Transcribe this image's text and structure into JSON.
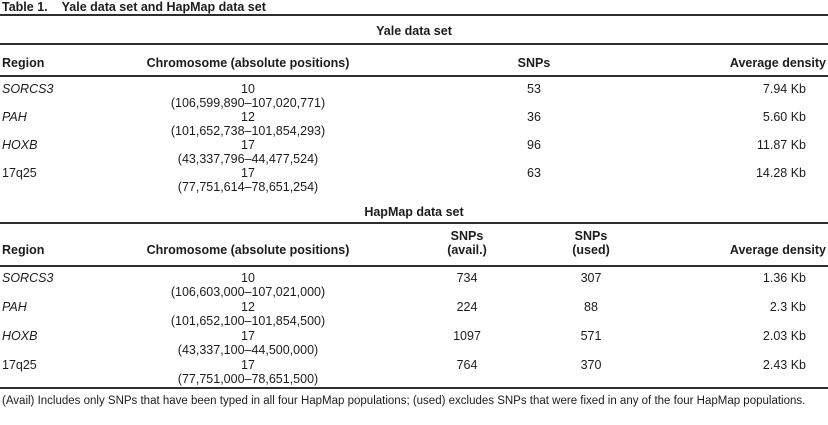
{
  "title": {
    "label": "Table 1.",
    "text": "Yale data set and HapMap data set"
  },
  "sections": [
    {
      "heading": "Yale data set",
      "columns": {
        "region": "Region",
        "chromosome": "Chromosome (absolute positions)",
        "snps": "SNPs",
        "density": "Average density"
      },
      "rows": [
        {
          "region": "SORCS3",
          "chromosome": "10",
          "positions": "(106,599,890–107,020,771)",
          "snps": "53",
          "density": "7.94 Kb"
        },
        {
          "region": "PAH",
          "chromosome": "12",
          "positions": "(101,652,738–101,854,293)",
          "snps": "36",
          "density": "5.60 Kb"
        },
        {
          "region": "HOXB",
          "chromosome": "17",
          "positions": "(43,337,796–44,477,524)",
          "snps": "96",
          "density": "11.87 Kb"
        },
        {
          "region": "17q25",
          "chromosome": "17",
          "positions": "(77,751,614–78,651,254)",
          "snps": "63",
          "density": "14.28 Kb"
        }
      ]
    },
    {
      "heading": "HapMap data set",
      "columns": {
        "region": "Region",
        "chromosome": "Chromosome (absolute positions)",
        "snps_avail_line1": "SNPs",
        "snps_avail_line2": "(avail.)",
        "snps_used_line1": "SNPs",
        "snps_used_line2": "(used)",
        "density": "Average density"
      },
      "rows": [
        {
          "region": "SORCS3",
          "chromosome": "10",
          "positions": "(106,603,000–107,021,000)",
          "snps_avail": "734",
          "snps_used": "307",
          "density": "1.36 Kb"
        },
        {
          "region": "PAH",
          "chromosome": "12",
          "positions": "(101,652,100–101,854,500)",
          "snps_avail": "224",
          "snps_used": "88",
          "density": "2.3 Kb"
        },
        {
          "region": "HOXB",
          "chromosome": "17",
          "positions": "(43,337,100–44,500,000)",
          "snps_avail": "1097",
          "snps_used": "571",
          "density": "2.03 Kb"
        },
        {
          "region": "17q25",
          "chromosome": "17",
          "positions": "(77,751,000–78,651,500)",
          "snps_avail": "764",
          "snps_used": "370",
          "density": "2.43 Kb"
        }
      ]
    }
  ],
  "footnote": "(Avail) Includes only SNPs that have been typed in all four HapMap populations; (used) excludes SNPs that were fixed in any of the four HapMap populations."
}
